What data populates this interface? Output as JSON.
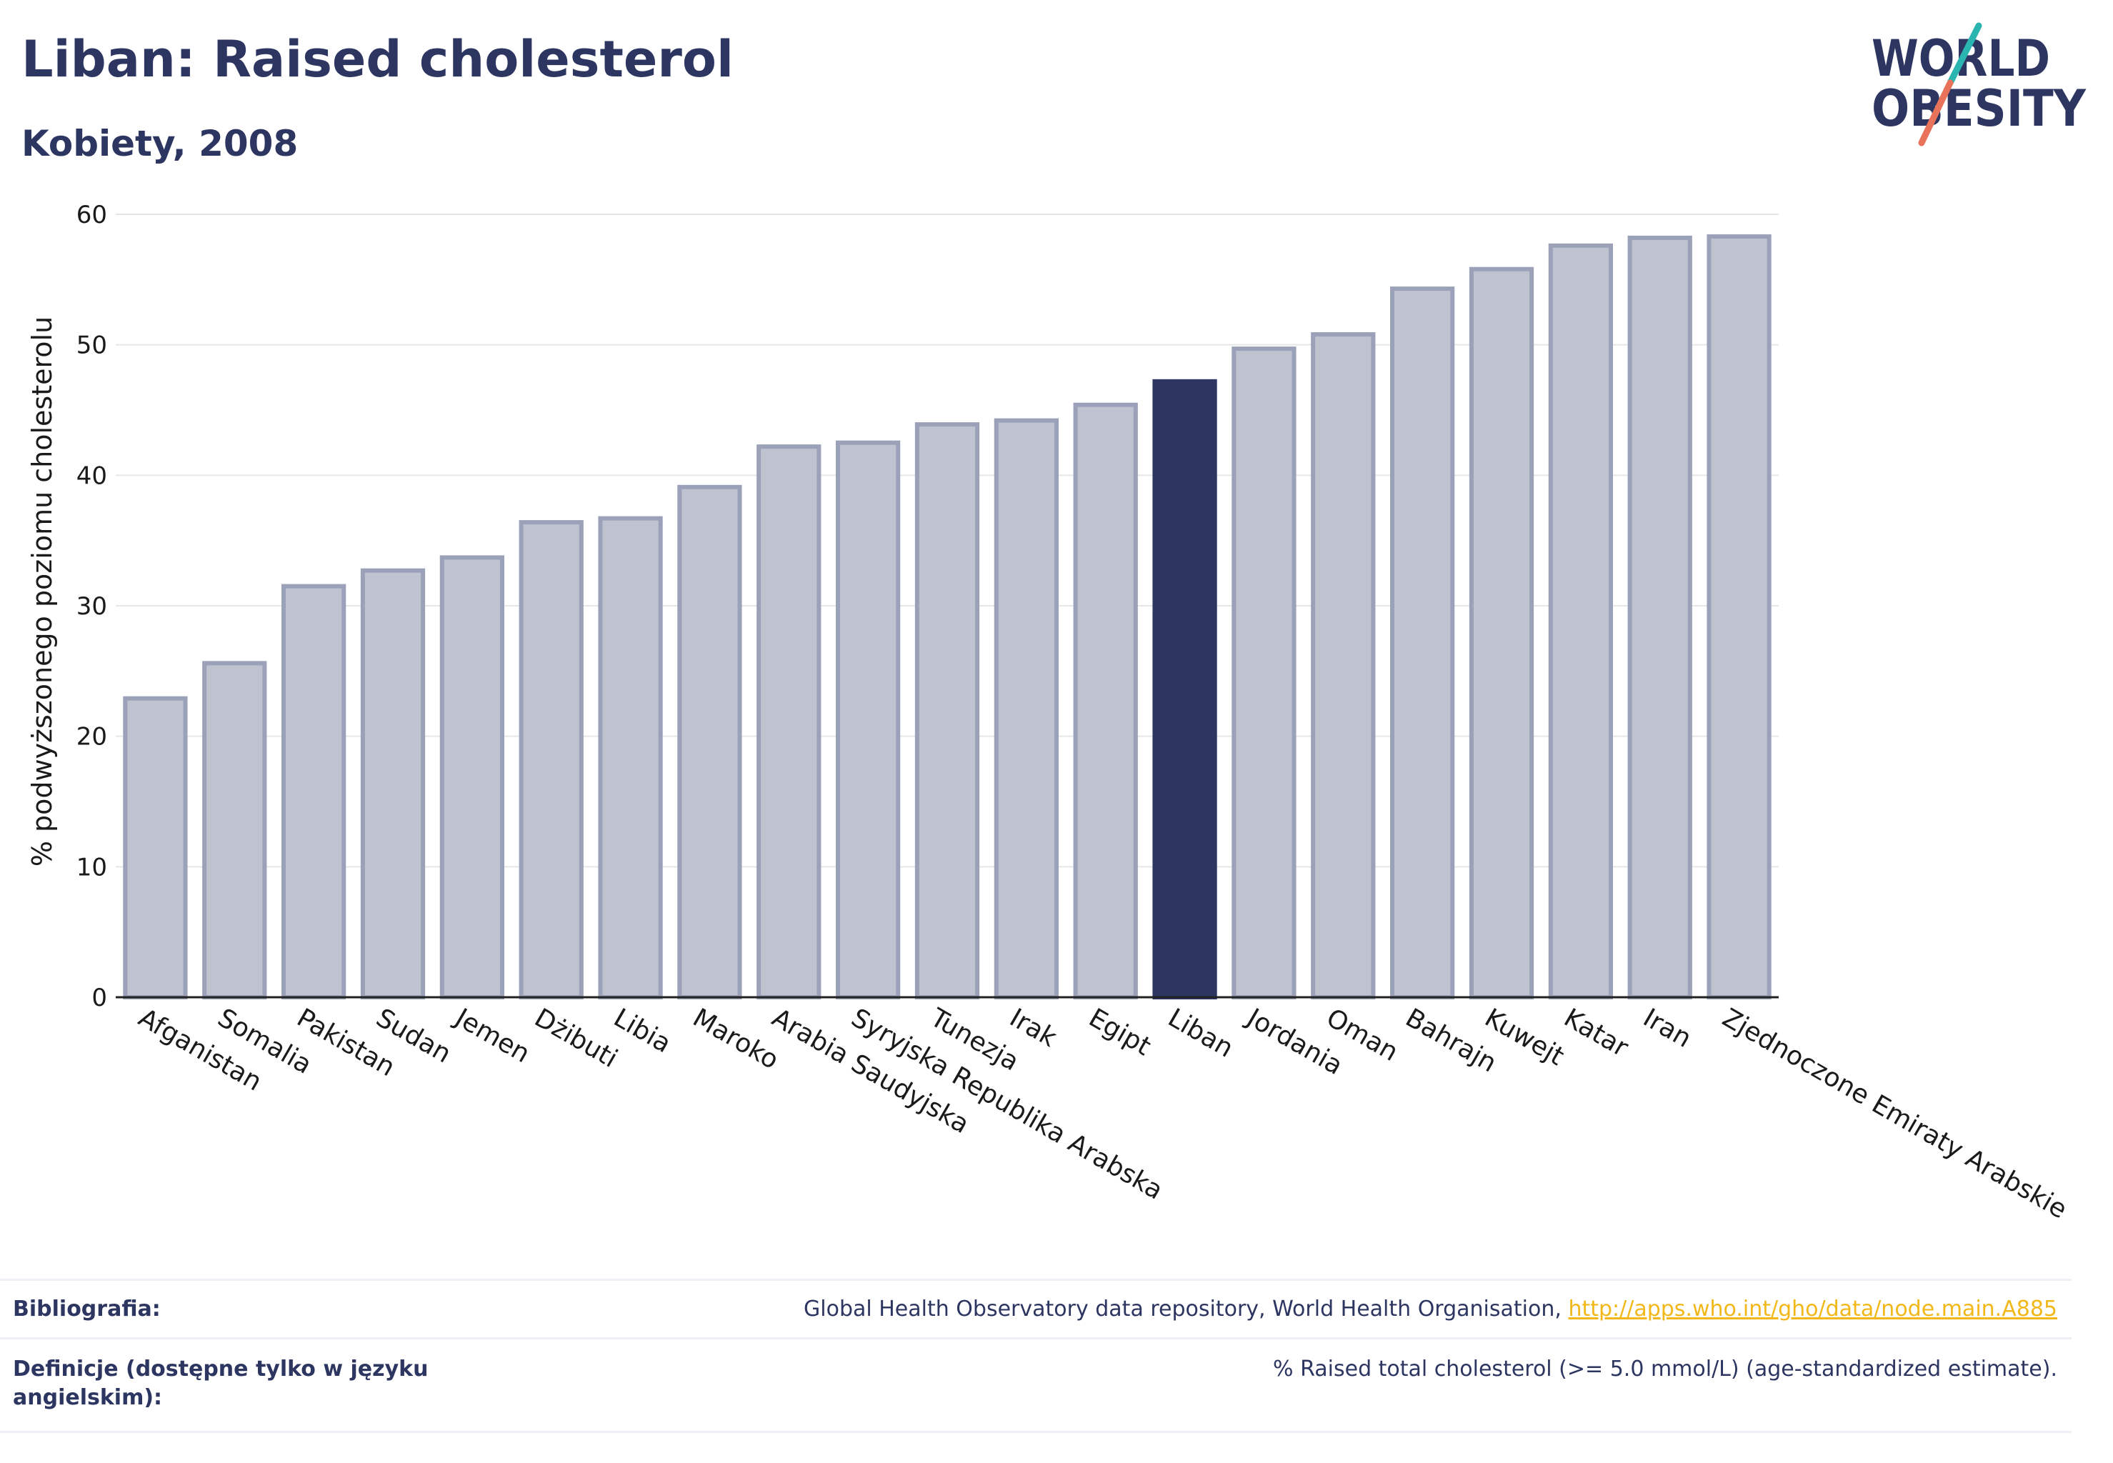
{
  "header": {
    "title": "Liban: Raised cholesterol",
    "subtitle": "Kobiety, 2008"
  },
  "logo": {
    "line1": "WORLD",
    "line2": "OBESITY",
    "text_color": "#2d3561",
    "slash_color_top": "#2bb5b0",
    "slash_color_bottom": "#e8735a"
  },
  "colors": {
    "bar_default": "#bfc3d0",
    "bar_border": "#9aa1b8",
    "bar_highlight": "#2d3561",
    "grid": "#e6e6e6"
  },
  "chart_data": {
    "type": "bar",
    "ylabel": "% podwyższonego poziomu cholesterolu",
    "ylim": [
      0,
      60
    ],
    "yticks": [
      0,
      10,
      20,
      30,
      40,
      50,
      60
    ],
    "grid": true,
    "highlight": "Liban",
    "categories": [
      "Afganistan",
      "Somalia",
      "Pakistan",
      "Sudan",
      "Jemen",
      "Dżibuti",
      "Libia",
      "Maroko",
      "Arabia Saudyjska",
      "Syryjska Republika Arabska",
      "Tunezja",
      "Irak",
      "Egipt",
      "Liban",
      "Jordania",
      "Oman",
      "Bahrajn",
      "Kuwejt",
      "Katar",
      "Iran",
      "Zjednoczone Emiraty Arabskie"
    ],
    "values": [
      22.9,
      25.6,
      31.5,
      32.7,
      33.7,
      36.4,
      36.7,
      39.1,
      42.2,
      42.5,
      43.9,
      44.2,
      45.4,
      47.2,
      49.7,
      50.8,
      54.3,
      55.8,
      57.6,
      58.2,
      58.3
    ]
  },
  "footer": {
    "bibliography_label": "Bibliografia:",
    "bibliography_text": "Global Health Observatory data repository, World Health Organisation, ",
    "bibliography_link": "http://apps.who.int/gho/data/node.main.A885",
    "definitions_label_line1": "Definicje (dostępne tylko w języku",
    "definitions_label_line2": "angielskim):",
    "definitions_text": "% Raised total cholesterol (>= 5.0 mmol/L) (age-standardized estimate)."
  }
}
